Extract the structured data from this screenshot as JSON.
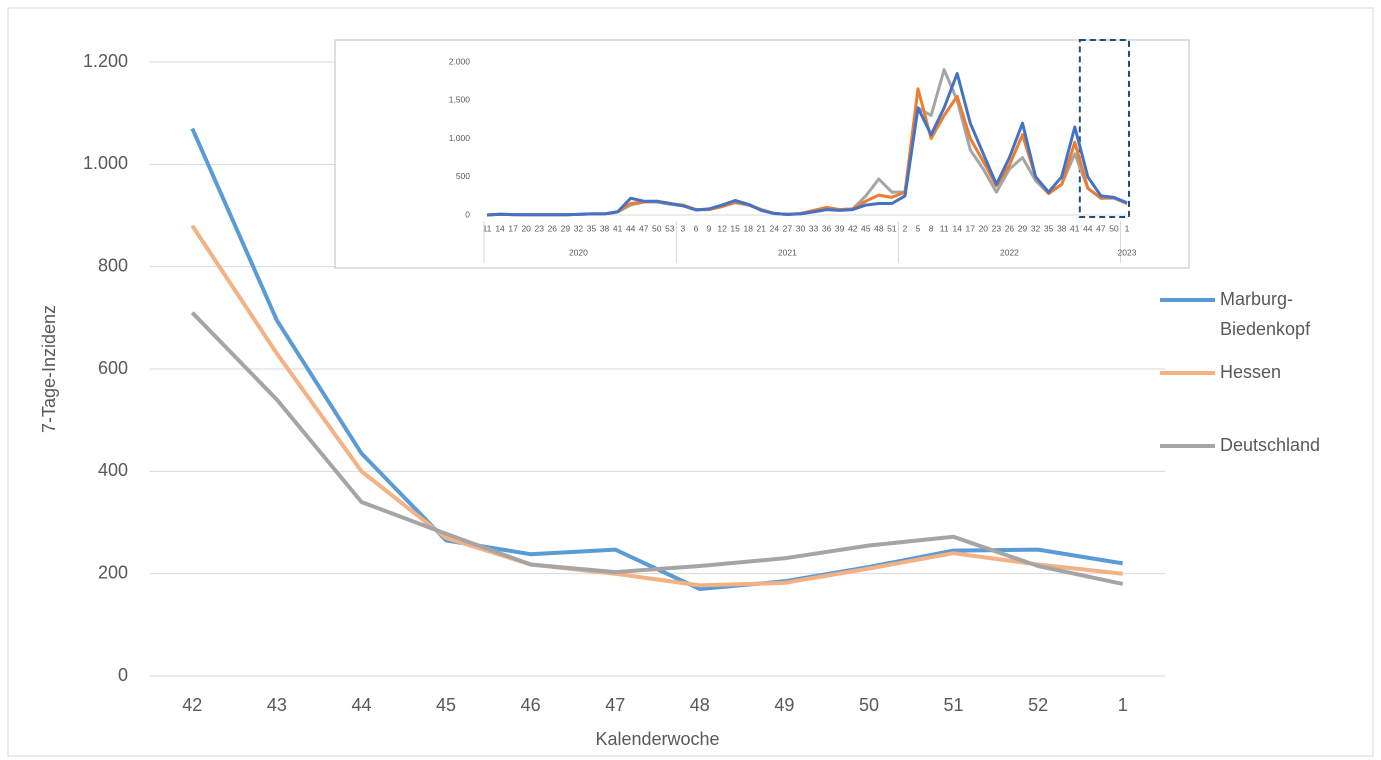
{
  "chart_data": [
    {
      "type": "line",
      "xlabel": "Kalenderwoche",
      "ylabel": "7-Tage-Inzidenz",
      "categories": [
        "42",
        "43",
        "44",
        "45",
        "46",
        "47",
        "48",
        "49",
        "50",
        "51",
        "52",
        "1"
      ],
      "series": [
        {
          "name": "Marburg-Biedenkopf",
          "color": "#5b9bd5",
          "values": [
            1070,
            695,
            435,
            265,
            238,
            247,
            170,
            185,
            213,
            245,
            247,
            220
          ]
        },
        {
          "name": "Hessen",
          "color": "#f4b183",
          "values": [
            880,
            630,
            400,
            270,
            218,
            200,
            177,
            182,
            210,
            240,
            218,
            200
          ]
        },
        {
          "name": "Deutschland",
          "color": "#a5a5a5",
          "values": [
            710,
            540,
            340,
            278,
            218,
            203,
            215,
            230,
            255,
            272,
            215,
            180
          ]
        }
      ],
      "ylim": [
        0,
        1200
      ],
      "yticks": [
        0,
        200,
        400,
        600,
        800,
        {
          "value": 1000,
          "label": "1.000"
        },
        {
          "value": 1200,
          "label": "1.200"
        }
      ],
      "grid": true,
      "legend": "right"
    },
    {
      "type": "line",
      "categories": [
        "11",
        "14",
        "17",
        "20",
        "23",
        "26",
        "29",
        "32",
        "35",
        "38",
        "41",
        "44",
        "47",
        "50",
        "53",
        "3",
        "6",
        "9",
        "12",
        "15",
        "18",
        "21",
        "24",
        "27",
        "30",
        "33",
        "36",
        "39",
        "42",
        "45",
        "48",
        "51",
        "2",
        "5",
        "8",
        "11",
        "14",
        "17",
        "20",
        "23",
        "26",
        "29",
        "32",
        "35",
        "38",
        "41",
        "44",
        "47",
        "50",
        "1"
      ],
      "years": [
        "2020",
        "2020",
        "2020",
        "2020",
        "2020",
        "2020",
        "2020",
        "2020",
        "2020",
        "2020",
        "2020",
        "2020",
        "2020",
        "2020",
        "2020",
        "2021",
        "2021",
        "2021",
        "2021",
        "2021",
        "2021",
        "2021",
        "2021",
        "2021",
        "2021",
        "2021",
        "2021",
        "2021",
        "2021",
        "2021",
        "2021",
        "2021",
        "2022",
        "2022",
        "2022",
        "2022",
        "2022",
        "2022",
        "2022",
        "2022",
        "2022",
        "2022",
        "2022",
        "2022",
        "2022",
        "2022",
        "2022",
        "2022",
        "2022",
        "2023"
      ],
      "series": [
        {
          "name": "Deutschland",
          "color": "#a5a5a5",
          "values": [
            0,
            10,
            5,
            2,
            2,
            3,
            3,
            8,
            15,
            15,
            40,
            130,
            170,
            170,
            140,
            120,
            70,
            70,
            110,
            160,
            130,
            70,
            20,
            7,
            18,
            50,
            80,
            70,
            80,
            250,
            470,
            300,
            300,
            1400,
            1300,
            1900,
            1500,
            850,
            600,
            300,
            600,
            750,
            450,
            280,
            400,
            800,
            350,
            220,
            220,
            150
          ]
        },
        {
          "name": "Hessen",
          "color": "#ed7d31",
          "values": [
            0,
            10,
            5,
            2,
            2,
            3,
            3,
            8,
            15,
            15,
            40,
            150,
            170,
            180,
            150,
            130,
            70,
            70,
            110,
            170,
            140,
            70,
            20,
            8,
            20,
            60,
            100,
            70,
            80,
            180,
            260,
            230,
            300,
            1650,
            1000,
            1300,
            1550,
            1000,
            700,
            380,
            650,
            1050,
            500,
            280,
            400,
            950,
            350,
            220,
            230,
            150
          ]
        },
        {
          "name": "Marburg-Biedenkopf",
          "color": "#4472c4",
          "values": [
            0,
            10,
            5,
            2,
            2,
            3,
            3,
            8,
            15,
            15,
            40,
            220,
            180,
            180,
            150,
            120,
            65,
            80,
            130,
            190,
            140,
            60,
            20,
            8,
            15,
            40,
            70,
            60,
            70,
            130,
            150,
            150,
            250,
            1400,
            1050,
            1400,
            1850,
            1200,
            800,
            400,
            750,
            1200,
            500,
            300,
            500,
            1150,
            500,
            250,
            230,
            160
          ]
        }
      ],
      "ylim": [
        0,
        2000
      ],
      "yticks": [
        0,
        500,
        {
          "value": 1000,
          "label": "1.000"
        },
        {
          "value": 1500,
          "label": "1.500"
        },
        {
          "value": 2000,
          "label": "2.000"
        }
      ],
      "grid": false
    }
  ]
}
